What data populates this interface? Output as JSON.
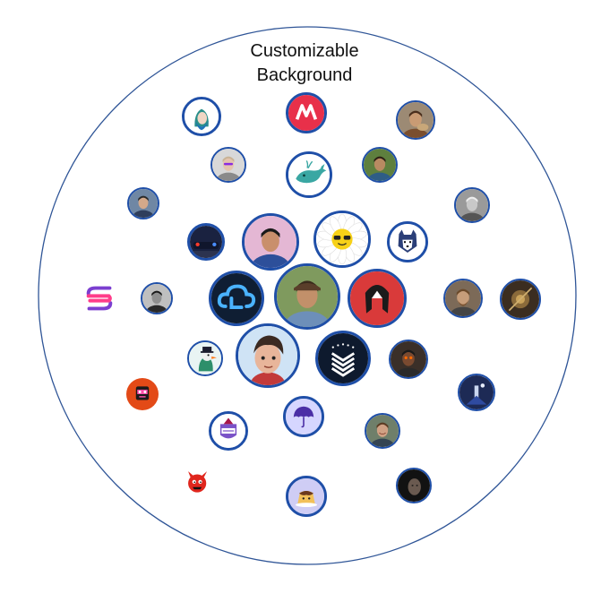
{
  "title_lines": [
    "Customizable",
    "Background"
  ],
  "colors": {
    "ring": "#2f5597",
    "avatar_border": "#1f4fa8"
  },
  "avatars": [
    {
      "name": "avatar-elf-drawing-icon",
      "kind": "elf"
    },
    {
      "name": "avatar-red-m-logo-icon",
      "kind": "mlogo"
    },
    {
      "name": "avatar-man-with-animal-icon",
      "kind": "photo-warm"
    },
    {
      "name": "avatar-woman-sunglasses-icon",
      "kind": "photo-woman"
    },
    {
      "name": "avatar-whale-icon",
      "kind": "whale"
    },
    {
      "name": "avatar-man-outdoors-icon",
      "kind": "photo-green"
    },
    {
      "name": "avatar-man-portrait-icon",
      "kind": "photo-blue"
    },
    {
      "name": "avatar-bw-portrait-icon",
      "kind": "photo-bw"
    },
    {
      "name": "avatar-car-lights-icon",
      "kind": "car"
    },
    {
      "name": "avatar-man-pink-background-icon",
      "kind": "photo-pink"
    },
    {
      "name": "avatar-daisy-sunglasses-icon",
      "kind": "daisy"
    },
    {
      "name": "avatar-husky-pixel-icon",
      "kind": "husky"
    },
    {
      "name": "avatar-s-logo-icon",
      "kind": "slogo"
    },
    {
      "name": "avatar-man-dark-icon",
      "kind": "photo-dark"
    },
    {
      "name": "avatar-cloud-logo-icon",
      "kind": "cloud"
    },
    {
      "name": "avatar-man-hat-center-icon",
      "kind": "photo-center"
    },
    {
      "name": "avatar-red-helmet-icon",
      "kind": "helmet"
    },
    {
      "name": "avatar-bearded-man-icon",
      "kind": "photo-beard"
    },
    {
      "name": "avatar-steampunk-icon",
      "kind": "photo-steam"
    },
    {
      "name": "avatar-bird-top-hat-icon",
      "kind": "bird"
    },
    {
      "name": "avatar-cartoon-boy-icon",
      "kind": "boy"
    },
    {
      "name": "avatar-chevron-logo-icon",
      "kind": "chevron"
    },
    {
      "name": "avatar-glowing-eyes-icon",
      "kind": "photo-glow"
    },
    {
      "name": "avatar-pink-robot-icon",
      "kind": "robot"
    },
    {
      "name": "avatar-fantasy-art-icon",
      "kind": "fantasy"
    },
    {
      "name": "avatar-umbrella-icon",
      "kind": "umbrella"
    },
    {
      "name": "avatar-wizard-badge-icon",
      "kind": "wizard"
    },
    {
      "name": "avatar-smiling-man-icon",
      "kind": "photo-smile"
    },
    {
      "name": "avatar-red-monster-icon",
      "kind": "monster"
    },
    {
      "name": "avatar-pudding-icon",
      "kind": "pudding"
    },
    {
      "name": "avatar-dark-face-icon",
      "kind": "photo-darkface"
    }
  ]
}
